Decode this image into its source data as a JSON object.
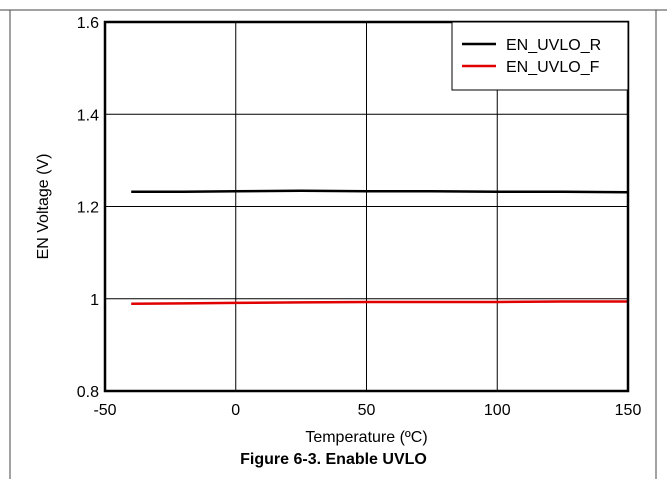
{
  "caption": "Figure 6-3. Enable UVLO",
  "chart_data": {
    "type": "line",
    "xlabel": "Temperature (ºC)",
    "ylabel": "EN Voltage (V)",
    "xlim": [
      -50,
      150
    ],
    "ylim": [
      0.8,
      1.6
    ],
    "xticks": [
      -50,
      0,
      50,
      100,
      150
    ],
    "yticks": [
      0.8,
      1,
      1.2,
      1.4,
      1.6
    ],
    "xtick_labels": [
      "-50",
      "0",
      "50",
      "100",
      "150"
    ],
    "ytick_labels": [
      "0.8",
      "1",
      "1.2",
      "1.4",
      "1.6"
    ],
    "grid": true,
    "legend_position": "top-right",
    "series": [
      {
        "name": "EN_UVLO_R",
        "color": "#000000",
        "x": [
          -40,
          -20,
          0,
          25,
          50,
          75,
          100,
          125,
          150
        ],
        "y": [
          1.232,
          1.232,
          1.233,
          1.234,
          1.233,
          1.233,
          1.232,
          1.232,
          1.231
        ]
      },
      {
        "name": "EN_UVLO_F",
        "color": "#e00000",
        "x": [
          -40,
          -20,
          0,
          25,
          50,
          75,
          100,
          125,
          150
        ],
        "y": [
          0.989,
          0.99,
          0.991,
          0.992,
          0.993,
          0.993,
          0.993,
          0.994,
          0.994
        ]
      }
    ]
  }
}
